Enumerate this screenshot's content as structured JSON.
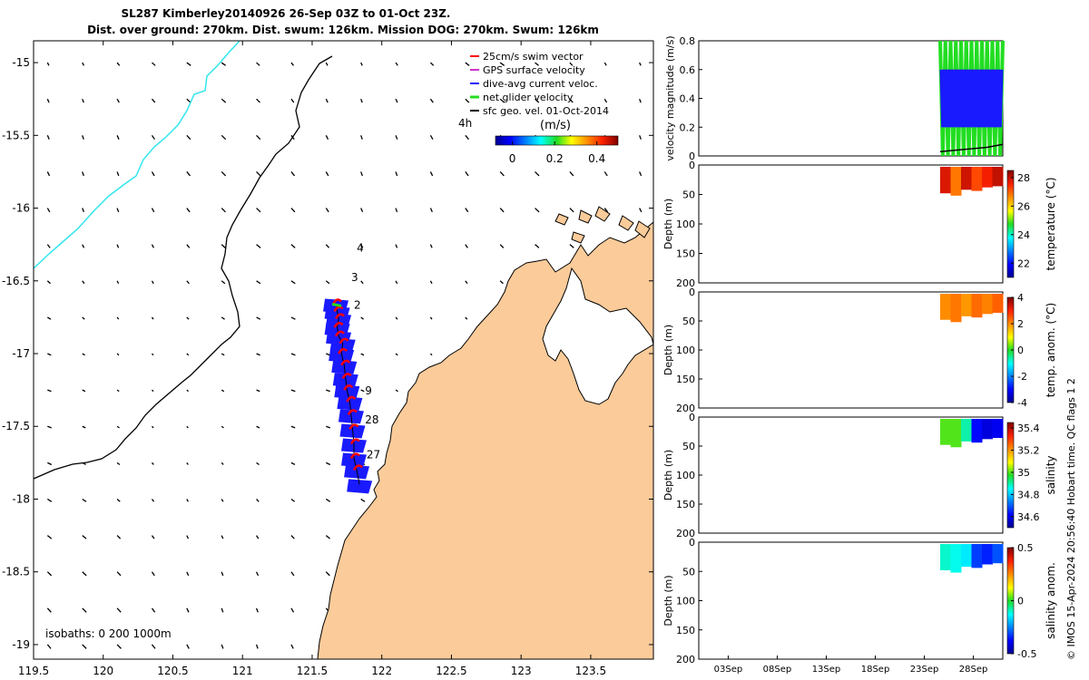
{
  "title": {
    "line1": "SL287 Kimberley20140926 26-Sep 03Z to 01-Oct 23Z.",
    "line2": "Dist. over ground: 270km. Dist. swum: 126km. Mission DOG: 270km. Swum: 126km"
  },
  "colors": {
    "land": "#fbcb9a",
    "ocean": "#ffffff",
    "isobath_shallow": "#33e6ee",
    "coast": "#000000",
    "glider_track": "#1a1aff",
    "swim_vector": "#ff0000",
    "net_velocity": "#22dd22"
  },
  "chart_data": [
    {
      "type": "map",
      "name": "glider-track-map",
      "xlabel": "",
      "ylabel": "",
      "xlim": [
        119.5,
        123.95
      ],
      "ylim": [
        -19.1,
        -14.85
      ],
      "xticks": [
        "119.5",
        "120",
        "120.5",
        "121",
        "121.5",
        "122",
        "122.5",
        "123",
        "123.5"
      ],
      "xtick_values": [
        119.5,
        120,
        120.5,
        121,
        121.5,
        122,
        122.5,
        123,
        123.5
      ],
      "yticks": [
        "-15",
        "-15.5",
        "-16",
        "-16.5",
        "-17",
        "-17.5",
        "-18",
        "-18.5",
        "-19"
      ],
      "ytick_values": [
        -15,
        -15.5,
        -16,
        -16.5,
        -17,
        -17.5,
        -18,
        -18.5,
        -19
      ],
      "legend": {
        "placement": "top-right",
        "entries": [
          {
            "label": "25cm/s swim vector",
            "color": "#ff0000"
          },
          {
            "label": "GPS surface velocity",
            "color": "#cc33cc"
          },
          {
            "label": "dive-avg current veloc.",
            "color": "#1a1aff"
          },
          {
            "label": "net glider velocity",
            "color": "#22dd22"
          },
          {
            "label": "sfc geo. vel. 01-Oct-2014",
            "color": "#000000"
          }
        ]
      },
      "colorbar": {
        "label": "(m/s)",
        "ticks": [
          "0",
          "0.2",
          "0.4"
        ],
        "range": [
          -0.08,
          0.5
        ]
      },
      "day_labels": [
        {
          "text": "4",
          "lon": 121.82,
          "lat": -16.3
        },
        {
          "text": "3",
          "lon": 121.78,
          "lat": -16.5
        },
        {
          "text": "2",
          "lon": 121.8,
          "lat": -16.69
        },
        {
          "text": "9",
          "lon": 121.88,
          "lat": -17.28
        },
        {
          "text": "28",
          "lon": 121.88,
          "lat": -17.48
        },
        {
          "text": "27",
          "lon": 121.89,
          "lat": -17.72
        }
      ],
      "corner_label": {
        "text": "4h",
        "lon": 123.1,
        "lat": -15.42
      },
      "isobath_note": "isobaths: 0   200  1000m",
      "track": {
        "lon": [
          121.84,
          121.82,
          121.8,
          121.8,
          121.79,
          121.78,
          121.77,
          121.75,
          121.74,
          121.73,
          121.71,
          121.72,
          121.69,
          121.68,
          121.69,
          121.68,
          121.67
        ],
        "lat": [
          -17.9,
          -17.8,
          -17.72,
          -17.62,
          -17.52,
          -17.42,
          -17.33,
          -17.25,
          -17.17,
          -17.08,
          -17.0,
          -16.93,
          -16.88,
          -16.82,
          -16.76,
          -16.71,
          -16.66
        ]
      }
    },
    {
      "type": "line",
      "name": "velocity-magnitude",
      "ylabel": "velocity magnitude (m/s)",
      "ylim": [
        0,
        0.8
      ],
      "yticks": [
        "0",
        "0.2",
        "0.4",
        "0.6",
        "0.8"
      ],
      "xlim": [
        0,
        31
      ],
      "series": [
        {
          "name": "net glider velocity",
          "color": "#22dd22",
          "range": [
            0.0,
            0.8
          ]
        },
        {
          "name": "dive-avg current veloc.",
          "color": "#1a1aff",
          "range": [
            0.2,
            0.6
          ]
        },
        {
          "name": "sfc geo. vel.",
          "color": "#000000",
          "values": [
            0.03,
            0.04,
            0.05,
            0.06,
            0.08
          ]
        }
      ]
    },
    {
      "type": "heatmap",
      "name": "temperature-section",
      "ylabel": "Depth (m)",
      "ylim": [
        200,
        0
      ],
      "yticks": [
        "0",
        "50",
        "100",
        "150",
        "200"
      ],
      "colorbar_label": "temperature (°C)",
      "colorbar_ticks": [
        "28",
        "26",
        "24",
        "22"
      ],
      "colorbar_range": [
        21,
        28.5
      ],
      "cell_values": [
        27.8,
        26.8,
        27.9,
        27.2,
        27.6,
        28.0
      ]
    },
    {
      "type": "heatmap",
      "name": "temperature-anomaly-section",
      "ylabel": "Depth (m)",
      "ylim": [
        200,
        0
      ],
      "yticks": [
        "0",
        "50",
        "100",
        "150",
        "200"
      ],
      "colorbar_label": "temp. anom. (°C)",
      "colorbar_ticks": [
        "4",
        "2",
        "0",
        "-2",
        "-4"
      ],
      "colorbar_range": [
        -4,
        4
      ],
      "cell_values": [
        2.0,
        2.2,
        1.9,
        2.3,
        2.1,
        2.4
      ]
    },
    {
      "type": "heatmap",
      "name": "salinity-section",
      "ylabel": "Depth (m)",
      "ylim": [
        200,
        0
      ],
      "yticks": [
        "0",
        "50",
        "100",
        "150",
        "200"
      ],
      "colorbar_label": "salinity",
      "colorbar_ticks": [
        "35.4",
        "35.2",
        "35",
        "34.8",
        "34.6"
      ],
      "colorbar_range": [
        34.5,
        35.45
      ],
      "cell_values": [
        35.0,
        35.0,
        34.9,
        34.62,
        34.58,
        34.6
      ]
    },
    {
      "type": "heatmap",
      "name": "salinity-anomaly-section",
      "ylabel": "Depth (m)",
      "ylim": [
        200,
        0
      ],
      "yticks": [
        "0",
        "50",
        "100",
        "150",
        "200"
      ],
      "colorbar_label": "salinity anom.",
      "colorbar_ticks": [
        "0.5",
        "0",
        "-0.5"
      ],
      "colorbar_range": [
        -0.5,
        0.5
      ],
      "cell_values": [
        -0.1,
        -0.12,
        -0.15,
        -0.32,
        -0.35,
        -0.3
      ],
      "xticks": [
        "03Sep",
        "08Sep",
        "13Sep",
        "18Sep",
        "23Sep",
        "28Sep"
      ],
      "xtick_days": [
        3,
        8,
        13,
        18,
        23,
        28
      ]
    }
  ],
  "footer": {
    "qc_text": "© IMOS 15-Apr-2024 20:56:40 Hobart time. QC flags 1  2"
  }
}
